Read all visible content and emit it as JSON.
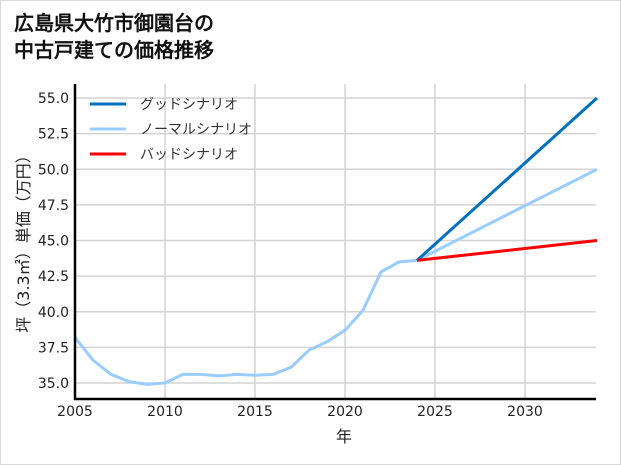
{
  "chart_data": {
    "type": "line",
    "title": "広島県大竹市御園台の中古戸建ての価格推移",
    "title_lines": [
      "広島県大竹市御園台の",
      "中古戸建ての価格推移"
    ],
    "xlabel": "年",
    "ylabel": "坪（3.3㎡）単価（万円）",
    "xlim": [
      2005,
      2034
    ],
    "ylim": [
      34,
      56
    ],
    "x_ticks": [
      2005,
      2010,
      2015,
      2020,
      2025,
      2030
    ],
    "y_ticks": [
      "35.0",
      "37.5",
      "40.0",
      "42.5",
      "45.0",
      "47.5",
      "50.0",
      "52.5",
      "55.0"
    ],
    "grid": true,
    "legend_position": "upper left",
    "series": [
      {
        "name": "グッドシナリオ",
        "color": "#0070c0",
        "x": [
          2024,
          2034
        ],
        "values": [
          43.6,
          55.0
        ]
      },
      {
        "name": "ノーマルシナリオ",
        "color": "#99ccff",
        "x": [
          2005,
          2006,
          2007,
          2008,
          2009,
          2010,
          2011,
          2012,
          2013,
          2014,
          2015,
          2016,
          2017,
          2018,
          2019,
          2020,
          2021,
          2022,
          2023,
          2024,
          2034
        ],
        "values": [
          38.2,
          36.6,
          35.6,
          35.1,
          34.9,
          35.0,
          35.6,
          35.6,
          35.5,
          35.6,
          35.55,
          35.6,
          36.1,
          37.3,
          37.9,
          38.7,
          40.1,
          42.8,
          43.5,
          43.6,
          50.0
        ]
      },
      {
        "name": "バッドシナリオ",
        "color": "#ff0000",
        "x": [
          2024,
          2034
        ],
        "values": [
          43.6,
          45.0
        ]
      }
    ]
  }
}
